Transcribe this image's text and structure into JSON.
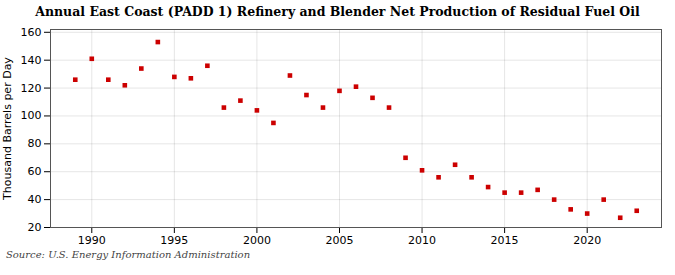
{
  "chart_data": {
    "type": "scatter",
    "title": "Annual East Coast (PADD 1) Refinery and Blender Net Production of Residual Fuel Oil",
    "ylabel": "Thousand Barrels per Day",
    "source": "Source: U.S. Energy Information Administration",
    "x": [
      1989,
      1990,
      1991,
      1992,
      1993,
      1994,
      1995,
      1996,
      1997,
      1998,
      1999,
      2000,
      2001,
      2002,
      2003,
      2004,
      2005,
      2006,
      2007,
      2008,
      2009,
      2010,
      2011,
      2012,
      2013,
      2014,
      2015,
      2016,
      2017,
      2018,
      2019,
      2020,
      2021,
      2022,
      2023
    ],
    "values": [
      126,
      141,
      126,
      122,
      134,
      153,
      128,
      127,
      136,
      106,
      111,
      104,
      95,
      129,
      115,
      106,
      118,
      121,
      113,
      106,
      70,
      61,
      56,
      65,
      56,
      49,
      45,
      45,
      47,
      40,
      33,
      30,
      40,
      27,
      32
    ],
    "color": "#cc0000",
    "marker": "square",
    "xlim": [
      1987.5,
      2024.5
    ],
    "xticks": [
      1990,
      1995,
      2000,
      2005,
      2010,
      2015,
      2020
    ],
    "ylim": [
      20,
      162
    ],
    "yticks": [
      20,
      40,
      60,
      80,
      100,
      120,
      140,
      160
    ],
    "grid": true
  }
}
